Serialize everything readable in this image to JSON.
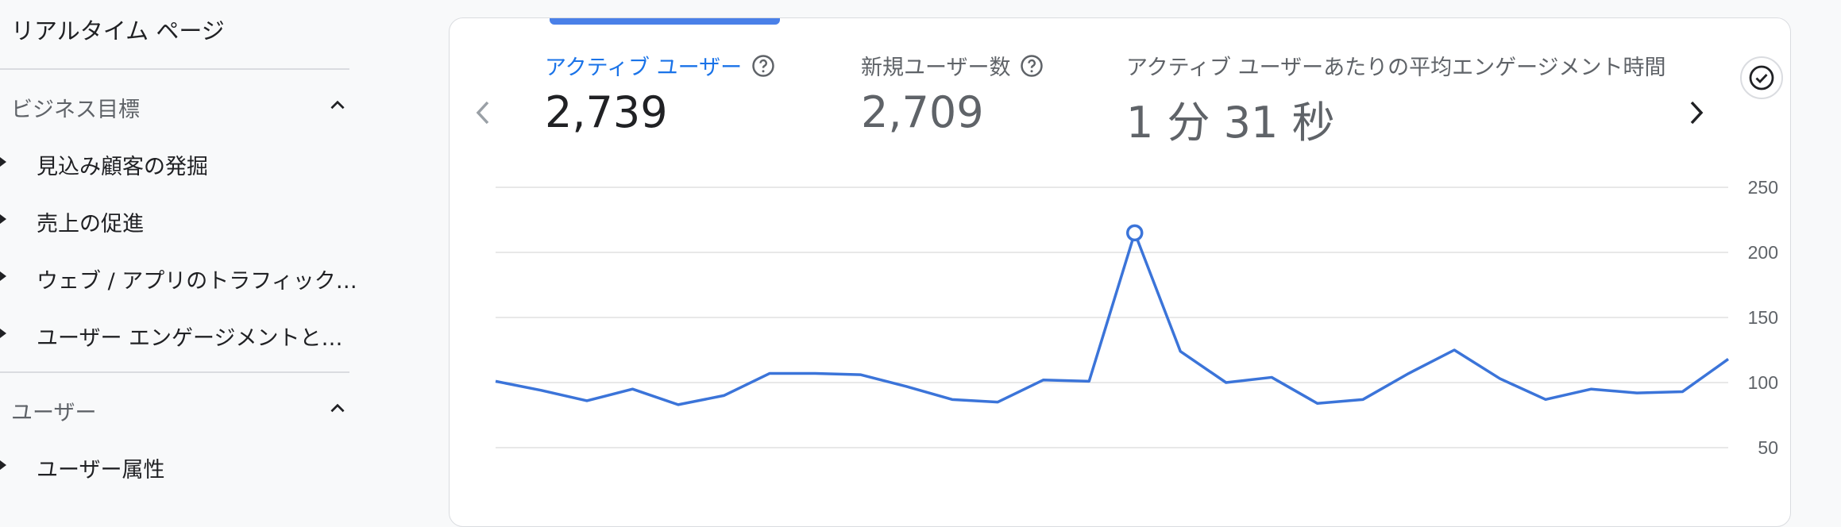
{
  "sidebar": {
    "title": "リアルタイム ページ",
    "sections": [
      {
        "label": "ビジネス目標",
        "items": [
          "見込み顧客の発掘",
          "売上の促進",
          "ウェブ / アプリのトラフィック…",
          "ユーザー エンゲージメントと…"
        ]
      },
      {
        "label": "ユーザー",
        "items": [
          "ユーザー属性"
        ]
      }
    ]
  },
  "card": {
    "metrics": [
      {
        "label": "アクティブ ユーザー",
        "value": "2,739",
        "selected": true
      },
      {
        "label": "新規ユーザー数",
        "value": "2,709",
        "selected": false
      },
      {
        "label": "アクティブ ユーザーあたりの平均エンゲージメント時間",
        "value": "1 分 31 秒",
        "selected": false
      }
    ],
    "icons": {
      "prev": "chevron-left-icon",
      "next": "chevron-right-icon",
      "check": "check-circle-icon",
      "help": "help-circle-icon"
    }
  },
  "chart_data": {
    "type": "line",
    "y_ticks": [
      250,
      200,
      150,
      100,
      50
    ],
    "ylim": [
      50,
      250
    ],
    "series": [
      {
        "values": [
          101,
          94,
          86,
          95,
          83,
          90,
          107,
          107,
          106,
          97,
          87,
          85,
          102,
          101,
          215,
          124,
          100,
          104,
          84,
          87,
          107,
          125,
          103,
          87,
          95,
          92,
          93,
          118
        ],
        "color": "#3b74d9",
        "highlight_index": 14
      }
    ],
    "grid": true,
    "colors": {
      "grid": "#e0e0e0",
      "line": "#3b74d9"
    }
  }
}
